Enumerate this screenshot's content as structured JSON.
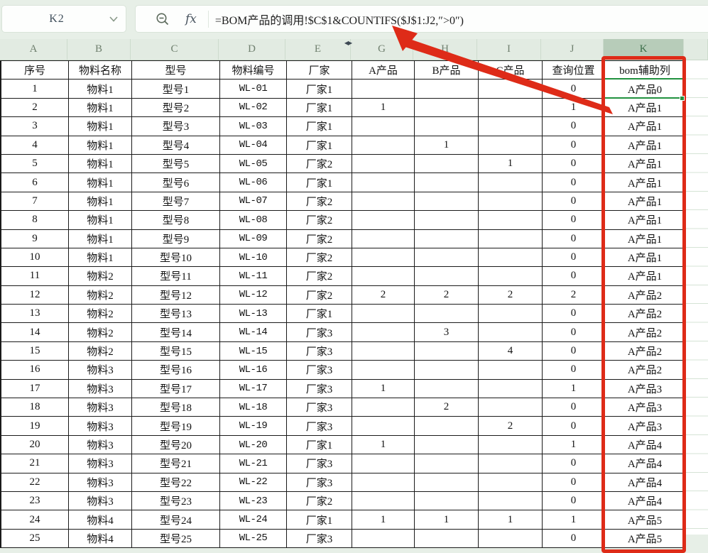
{
  "toolbar": {
    "cell_ref": "K2",
    "fx_label": "fx",
    "formula": "=BOM产品的调用!$C$1&COUNTIFS($J$1:J2,″>0″)"
  },
  "icons": {
    "namebox_chevron": "chevron-down",
    "formula_zoom": "zoom-out-magnifier",
    "formula_fx": "fx-function",
    "hidden_column_indicator": "left-right-arrows"
  },
  "hidden_column_glyph": "◀▶",
  "column_headers": [
    "A",
    "B",
    "C",
    "D",
    "E",
    "G",
    "H",
    "I",
    "J",
    "K",
    ""
  ],
  "selected_column_index": 9,
  "sheet": {
    "header_row": [
      "序号",
      "物料名称",
      "型号",
      "物料编号",
      "厂家",
      "A产品",
      "B产品",
      "C产品",
      "查询位置",
      "bom辅助列"
    ],
    "rows": [
      [
        "1",
        "物料1",
        "型号1",
        "WL-01",
        "厂家1",
        "",
        "",
        "",
        "0",
        "A产品0"
      ],
      [
        "2",
        "物料1",
        "型号2",
        "WL-02",
        "厂家1",
        "1",
        "",
        "",
        "1",
        "A产品1"
      ],
      [
        "3",
        "物料1",
        "型号3",
        "WL-03",
        "厂家1",
        "",
        "",
        "",
        "0",
        "A产品1"
      ],
      [
        "4",
        "物料1",
        "型号4",
        "WL-04",
        "厂家1",
        "",
        "1",
        "",
        "0",
        "A产品1"
      ],
      [
        "5",
        "物料1",
        "型号5",
        "WL-05",
        "厂家2",
        "",
        "",
        "1",
        "0",
        "A产品1"
      ],
      [
        "6",
        "物料1",
        "型号6",
        "WL-06",
        "厂家1",
        "",
        "",
        "",
        "0",
        "A产品1"
      ],
      [
        "7",
        "物料1",
        "型号7",
        "WL-07",
        "厂家2",
        "",
        "",
        "",
        "0",
        "A产品1"
      ],
      [
        "8",
        "物料1",
        "型号8",
        "WL-08",
        "厂家2",
        "",
        "",
        "",
        "0",
        "A产品1"
      ],
      [
        "9",
        "物料1",
        "型号9",
        "WL-09",
        "厂家2",
        "",
        "",
        "",
        "0",
        "A产品1"
      ],
      [
        "10",
        "物料1",
        "型号10",
        "WL-10",
        "厂家2",
        "",
        "",
        "",
        "0",
        "A产品1"
      ],
      [
        "11",
        "物料2",
        "型号11",
        "WL-11",
        "厂家2",
        "",
        "",
        "",
        "0",
        "A产品1"
      ],
      [
        "12",
        "物料2",
        "型号12",
        "WL-12",
        "厂家2",
        "2",
        "2",
        "2",
        "2",
        "A产品2"
      ],
      [
        "13",
        "物料2",
        "型号13",
        "WL-13",
        "厂家1",
        "",
        "",
        "",
        "0",
        "A产品2"
      ],
      [
        "14",
        "物料2",
        "型号14",
        "WL-14",
        "厂家3",
        "",
        "3",
        "",
        "0",
        "A产品2"
      ],
      [
        "15",
        "物料2",
        "型号15",
        "WL-15",
        "厂家3",
        "",
        "",
        "4",
        "0",
        "A产品2"
      ],
      [
        "16",
        "物料3",
        "型号16",
        "WL-16",
        "厂家3",
        "",
        "",
        "",
        "0",
        "A产品2"
      ],
      [
        "17",
        "物料3",
        "型号17",
        "WL-17",
        "厂家3",
        "1",
        "",
        "",
        "1",
        "A产品3"
      ],
      [
        "18",
        "物料3",
        "型号18",
        "WL-18",
        "厂家3",
        "",
        "2",
        "",
        "0",
        "A产品3"
      ],
      [
        "19",
        "物料3",
        "型号19",
        "WL-19",
        "厂家3",
        "",
        "",
        "2",
        "0",
        "A产品3"
      ],
      [
        "20",
        "物料3",
        "型号20",
        "WL-20",
        "厂家1",
        "1",
        "",
        "",
        "1",
        "A产品4"
      ],
      [
        "21",
        "物料3",
        "型号21",
        "WL-21",
        "厂家3",
        "",
        "",
        "",
        "0",
        "A产品4"
      ],
      [
        "22",
        "物料3",
        "型号22",
        "WL-22",
        "厂家3",
        "",
        "",
        "",
        "0",
        "A产品4"
      ],
      [
        "23",
        "物料3",
        "型号23",
        "WL-23",
        "厂家2",
        "",
        "",
        "",
        "0",
        "A产品4"
      ],
      [
        "24",
        "物料4",
        "型号24",
        "WL-24",
        "厂家1",
        "1",
        "1",
        "1",
        "1",
        "A产品5"
      ],
      [
        "25",
        "物料4",
        "型号25",
        "WL-25",
        "厂家3",
        "",
        "",
        "",
        "0",
        "A产品5"
      ]
    ]
  },
  "colors": {
    "annotation_red": "#de2b18",
    "selection_green": "#21913f",
    "selected_header_bg": "#b7ccb9",
    "toolbar_bg": "#e7efe7"
  }
}
